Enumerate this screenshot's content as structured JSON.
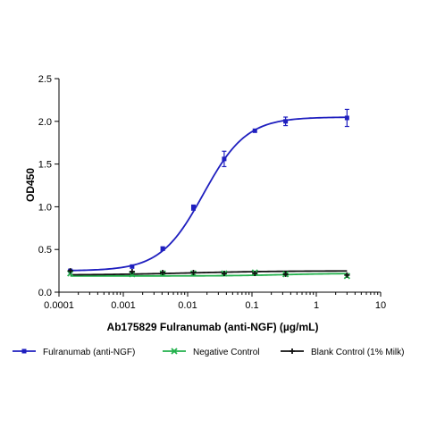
{
  "chart_data": {
    "type": "line",
    "title": "",
    "xlabel": "Ab175829 Fulranumab (anti-NGF) (µg/mL)",
    "ylabel": "OD450",
    "x_scale": "log",
    "xlim": [
      0.0001,
      10
    ],
    "ylim": [
      0,
      2.5
    ],
    "x_ticks": [
      0.0001,
      0.001,
      0.01,
      0.1,
      1,
      10
    ],
    "x_tick_labels": [
      "0.0001",
      "0.001",
      "0.01",
      "0.1",
      "1",
      "10"
    ],
    "y_ticks": [
      0,
      0.5,
      1.0,
      1.5,
      2.0,
      2.5
    ],
    "y_tick_labels": [
      "0.0",
      "0.5",
      "1.0",
      "1.5",
      "2.0",
      "2.5"
    ],
    "grid": false,
    "legend_position": "bottom",
    "series": [
      {
        "name": "Fulranumab (anti-NGF)",
        "color": "#1f1fbf",
        "marker": "square",
        "points": [
          {
            "x": 0.00015,
            "y": 0.25,
            "err": 0.01
          },
          {
            "x": 0.00137,
            "y": 0.3,
            "err": 0.01
          },
          {
            "x": 0.0041,
            "y": 0.51,
            "err": 0.02
          },
          {
            "x": 0.0123,
            "y": 0.99,
            "err": 0.03
          },
          {
            "x": 0.037,
            "y": 1.56,
            "err": 0.09
          },
          {
            "x": 0.111,
            "y": 1.89,
            "err": 0.01
          },
          {
            "x": 0.333,
            "y": 2.0,
            "err": 0.05
          },
          {
            "x": 3.0,
            "y": 2.04,
            "err": 0.1
          }
        ],
        "fit": {
          "bottom": 0.25,
          "top": 2.05,
          "ec50": 0.0176,
          "hill": 1.3
        }
      },
      {
        "name": "Negative Control",
        "color": "#22b14c",
        "marker": "x",
        "points": [
          {
            "x": 0.00015,
            "y": 0.22,
            "err": 0.01
          },
          {
            "x": 0.00137,
            "y": 0.21,
            "err": 0.01
          },
          {
            "x": 0.0041,
            "y": 0.22,
            "err": 0.01
          },
          {
            "x": 0.0123,
            "y": 0.22,
            "err": 0.01
          },
          {
            "x": 0.037,
            "y": 0.22,
            "err": 0.01
          },
          {
            "x": 0.111,
            "y": 0.23,
            "err": 0.01
          },
          {
            "x": 0.333,
            "y": 0.21,
            "err": 0.01
          },
          {
            "x": 3.0,
            "y": 0.19,
            "err": 0.01
          }
        ],
        "fit": {
          "bottom": 0.19,
          "top": 0.22,
          "ec50": 0.3,
          "hill": 1.0
        }
      },
      {
        "name": "Blank Control (1% Milk)",
        "color": "#111111",
        "marker": "plus",
        "points": [
          {
            "x": 0.00015,
            "y": 0.25,
            "err": 0.01
          },
          {
            "x": 0.00137,
            "y": 0.24,
            "err": 0.01
          },
          {
            "x": 0.0041,
            "y": 0.23,
            "err": 0.01
          },
          {
            "x": 0.0123,
            "y": 0.23,
            "err": 0.01
          },
          {
            "x": 0.037,
            "y": 0.22,
            "err": 0.01
          },
          {
            "x": 0.111,
            "y": 0.22,
            "err": 0.01
          },
          {
            "x": 0.333,
            "y": 0.21,
            "err": 0.01
          },
          {
            "x": 3.0,
            "y": 0.2,
            "err": 0.01
          }
        ],
        "fit": {
          "bottom": 0.2,
          "top": 0.25,
          "ec50": 0.01,
          "hill": 0.6
        }
      }
    ]
  }
}
